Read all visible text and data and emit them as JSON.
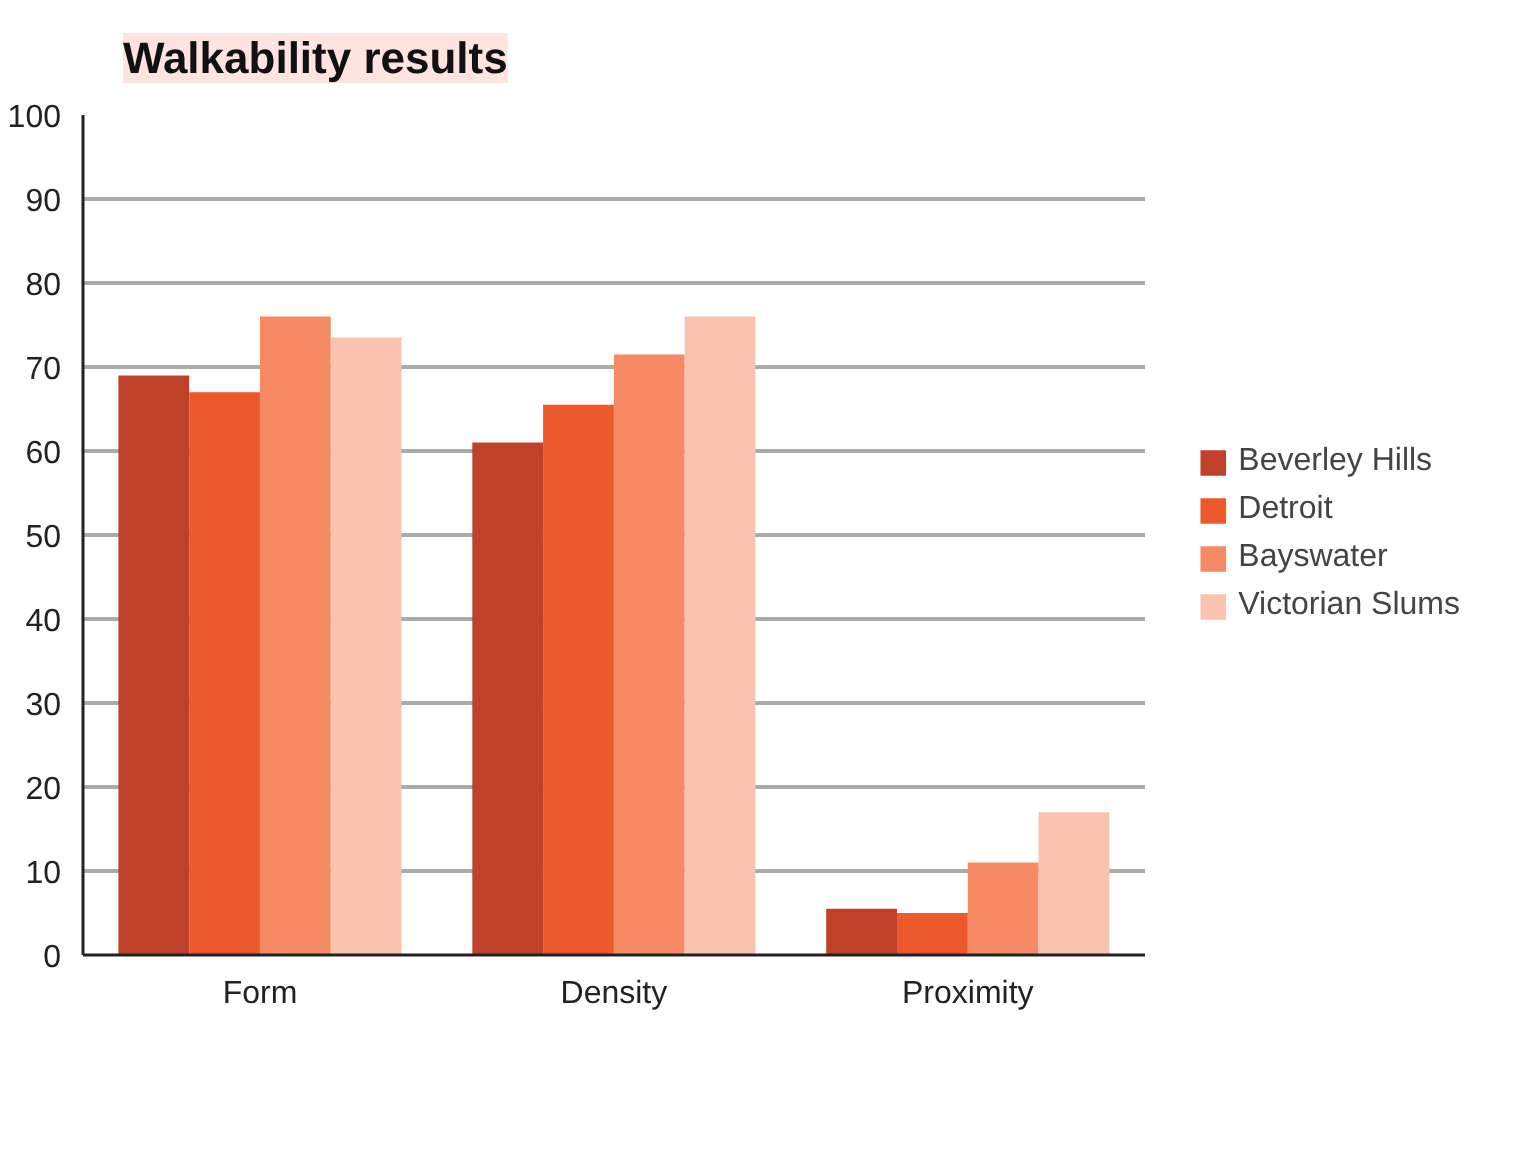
{
  "chart_data": {
    "type": "bar",
    "title": "Walkability results",
    "categories": [
      "Form",
      "Density",
      "Proximity"
    ],
    "series": [
      {
        "name": "Beverley Hills",
        "color": "#c0412a",
        "values": [
          69,
          61,
          5.5
        ]
      },
      {
        "name": "Detroit",
        "color": "#ec5a2b",
        "values": [
          67,
          65.5,
          5
        ]
      },
      {
        "name": "Bayswater",
        "color": "#f58a65",
        "values": [
          76,
          71.5,
          11
        ]
      },
      {
        "name": "Victorian Slums",
        "color": "#f9c3b0",
        "values": [
          73.5,
          76,
          17
        ]
      }
    ],
    "ylim": [
      0,
      100
    ],
    "yticks": [
      0,
      10,
      20,
      30,
      40,
      50,
      60,
      70,
      80,
      90,
      100
    ],
    "grid": "y",
    "legend": "right"
  }
}
